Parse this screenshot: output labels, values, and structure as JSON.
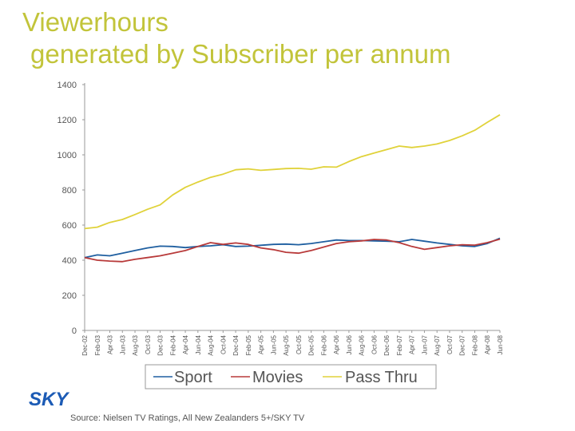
{
  "title": {
    "line1": "Viewerhours",
    "line2": "generated by Subscriber per annum"
  },
  "source": "Source: Nielsen TV Ratings, All New Zealanders 5+/SKY TV",
  "logo": {
    "text": "SKY",
    "color": "#1c5bb5"
  },
  "chart_data": {
    "type": "line",
    "title": "Viewerhours generated by Subscriber per annum",
    "xlabel": "",
    "ylabel": "",
    "ylim": [
      0,
      1400
    ],
    "yticks": [
      0,
      200,
      400,
      600,
      800,
      1000,
      1200,
      1400
    ],
    "grid": false,
    "legend": "bottom",
    "categories": [
      "Dec-02",
      "Feb-03",
      "Apr-03",
      "Jun-03",
      "Aug-03",
      "Oct-03",
      "Dec-03",
      "Feb-04",
      "Apr-04",
      "Jun-04",
      "Aug-04",
      "Oct-04",
      "Dec-04",
      "Feb-05",
      "Apr-05",
      "Jun-05",
      "Aug-05",
      "Oct-05",
      "Dec-05",
      "Feb-06",
      "Apr-06",
      "Jun-06",
      "Aug-06",
      "Oct-06",
      "Dec-06",
      "Feb-07",
      "Apr-07",
      "Jun-07",
      "Aug-07",
      "Oct-07",
      "Dec-07",
      "Feb-08",
      "Apr-08",
      "Jun-08"
    ],
    "series": [
      {
        "name": "Sport",
        "color": "#1f5fa0",
        "values": [
          415,
          430,
          425,
          440,
          455,
          470,
          480,
          478,
          472,
          478,
          482,
          488,
          478,
          480,
          485,
          490,
          492,
          488,
          495,
          505,
          515,
          512,
          512,
          510,
          508,
          505,
          518,
          508,
          498,
          490,
          482,
          478,
          495,
          525
        ]
      },
      {
        "name": "Movies",
        "color": "#b83a3a",
        "values": [
          415,
          400,
          395,
          392,
          405,
          415,
          425,
          440,
          455,
          478,
          500,
          490,
          498,
          490,
          470,
          460,
          445,
          440,
          455,
          475,
          495,
          505,
          510,
          518,
          515,
          500,
          478,
          462,
          472,
          482,
          488,
          486,
          500,
          520
        ]
      },
      {
        "name": "Pass Thru",
        "color": "#e0d23a",
        "values": [
          580,
          588,
          615,
          632,
          660,
          690,
          715,
          772,
          815,
          845,
          872,
          890,
          915,
          920,
          912,
          917,
          922,
          923,
          918,
          932,
          930,
          962,
          990,
          1010,
          1030,
          1050,
          1042,
          1050,
          1062,
          1082,
          1108,
          1140,
          1185,
          1228
        ]
      }
    ]
  }
}
